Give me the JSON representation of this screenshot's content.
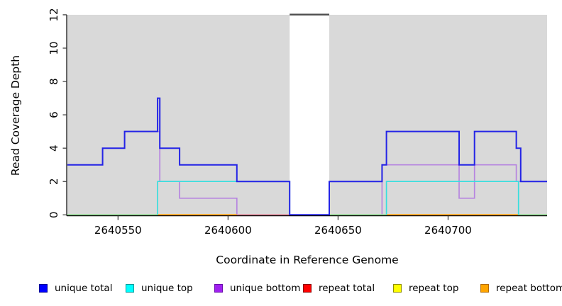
{
  "figure": {
    "background": "#ffffff",
    "plot_background": "#d9d9d9",
    "axis_color": "#000000",
    "tick_color": "#333333"
  },
  "chart_data": {
    "type": "line",
    "subtype": "step-coverage-plot",
    "title": "",
    "xlabel": "Coordinate in Reference Genome",
    "ylabel": "Read Coverage Depth",
    "xlim": [
      2640527,
      2640745
    ],
    "ylim": [
      0,
      12
    ],
    "grid": "off",
    "x_ticks": [
      2640550,
      2640600,
      2640650,
      2640700
    ],
    "x_tick_labels": [
      "2640550",
      "2640600",
      "2640650",
      "2640700"
    ],
    "y_ticks": [
      0,
      2,
      4,
      6,
      8,
      10,
      12
    ],
    "y_tick_labels": [
      "0",
      "2",
      "4",
      "6",
      "8",
      "10",
      "12"
    ],
    "masked_region": {
      "x_start": 2640628,
      "x_end": 2640646,
      "fill": "#ffffff",
      "top_border_color": "#4d4d4d",
      "note": "white vertical band over plot with dark cap at y=12"
    },
    "series": [
      {
        "name": "unique total",
        "line_color": "#2424e6",
        "line_width": 2,
        "draw": true,
        "segments": [
          {
            "points": [
              [
                2640527,
                3
              ],
              [
                2640543,
                3
              ],
              [
                2640543,
                4
              ],
              [
                2640553,
                4
              ],
              [
                2640553,
                5
              ],
              [
                2640568,
                5
              ],
              [
                2640568,
                7
              ],
              [
                2640569,
                7
              ],
              [
                2640569,
                4
              ],
              [
                2640578,
                4
              ],
              [
                2640578,
                3
              ],
              [
                2640604,
                3
              ],
              [
                2640604,
                2
              ],
              [
                2640628,
                2
              ],
              [
                2640628,
                0
              ],
              [
                2640646,
                0
              ],
              [
                2640646,
                2
              ],
              [
                2640670,
                2
              ],
              [
                2640670,
                3
              ],
              [
                2640672,
                3
              ],
              [
                2640672,
                5
              ],
              [
                2640705,
                5
              ],
              [
                2640705,
                3
              ],
              [
                2640712,
                3
              ],
              [
                2640712,
                5
              ],
              [
                2640731,
                5
              ],
              [
                2640731,
                4
              ],
              [
                2640733,
                4
              ],
              [
                2640733,
                2
              ],
              [
                2640745,
                2
              ]
            ]
          }
        ]
      },
      {
        "name": "unique top",
        "line_color": "#38dede",
        "line_width": 1.7,
        "draw": true,
        "segments": [
          {
            "points": [
              [
                2640568,
                0
              ],
              [
                2640568,
                2
              ],
              [
                2640628,
                2
              ],
              [
                2640628,
                0
              ]
            ]
          },
          {
            "points": [
              [
                2640672,
                0
              ],
              [
                2640672,
                2
              ],
              [
                2640732,
                2
              ],
              [
                2640732,
                0
              ]
            ]
          }
        ]
      },
      {
        "name": "unique bottom",
        "line_color": "#b685e0",
        "line_width": 1.7,
        "draw": true,
        "segments": [
          {
            "points": [
              [
                2640527,
                3
              ],
              [
                2640543,
                3
              ],
              [
                2640543,
                4
              ],
              [
                2640553,
                4
              ],
              [
                2640553,
                5
              ],
              [
                2640569,
                5
              ],
              [
                2640569,
                2
              ],
              [
                2640578,
                2
              ],
              [
                2640578,
                1
              ],
              [
                2640604,
                1
              ],
              [
                2640604,
                0
              ],
              [
                2640628,
                0
              ]
            ]
          },
          {
            "points": [
              [
                2640646,
                0
              ],
              [
                2640670,
                0
              ],
              [
                2640670,
                3
              ],
              [
                2640705,
                3
              ],
              [
                2640705,
                1
              ],
              [
                2640712,
                1
              ],
              [
                2640712,
                3
              ],
              [
                2640731,
                3
              ],
              [
                2640731,
                2
              ],
              [
                2640745,
                2
              ]
            ]
          }
        ]
      },
      {
        "name": "repeat total",
        "line_color": "#ff0000",
        "line_width": 1.7,
        "draw": false,
        "segments": [
          {
            "points": [
              [
                2640527,
                0
              ],
              [
                2640745,
                0
              ]
            ]
          }
        ]
      },
      {
        "name": "repeat top",
        "line_color": "#ffff00",
        "line_width": 1.7,
        "draw": false,
        "segments": [
          {
            "points": [
              [
                2640527,
                0
              ],
              [
                2640745,
                0
              ]
            ]
          }
        ]
      },
      {
        "name": "repeat bottom",
        "line_color": "#ffa500",
        "line_width": 1.7,
        "draw": false,
        "segments": [
          {
            "points": [
              [
                2640527,
                0
              ],
              [
                2640745,
                0
              ]
            ]
          }
        ]
      }
    ],
    "zero_line_overlays": [
      {
        "from": 2640527,
        "to": 2640568,
        "color": "#90d890"
      },
      {
        "from": 2640568,
        "to": 2640604,
        "color": "#ff9f00"
      },
      {
        "from": 2640604,
        "to": 2640628,
        "color": "#dd8899"
      },
      {
        "from": 2640646,
        "to": 2640672,
        "color": "#90d890"
      },
      {
        "from": 2640672,
        "to": 2640732,
        "color": "#ff9f00"
      },
      {
        "from": 2640732,
        "to": 2640745,
        "color": "#90d890"
      }
    ]
  },
  "legend": {
    "items": [
      {
        "label": "unique total",
        "fill": "#0000ff",
        "border": "#000099"
      },
      {
        "label": "unique top",
        "fill": "#00ffff",
        "border": "#009999"
      },
      {
        "label": "unique bottom",
        "fill": "#a020f0",
        "border": "#6a0dad"
      },
      {
        "label": "repeat total",
        "fill": "#ff0000",
        "border": "#8b0000"
      },
      {
        "label": "repeat top",
        "fill": "#ffff00",
        "border": "#8f8f00"
      },
      {
        "label": "repeat bottom",
        "fill": "#ffa500",
        "border": "#b36b00"
      }
    ]
  }
}
